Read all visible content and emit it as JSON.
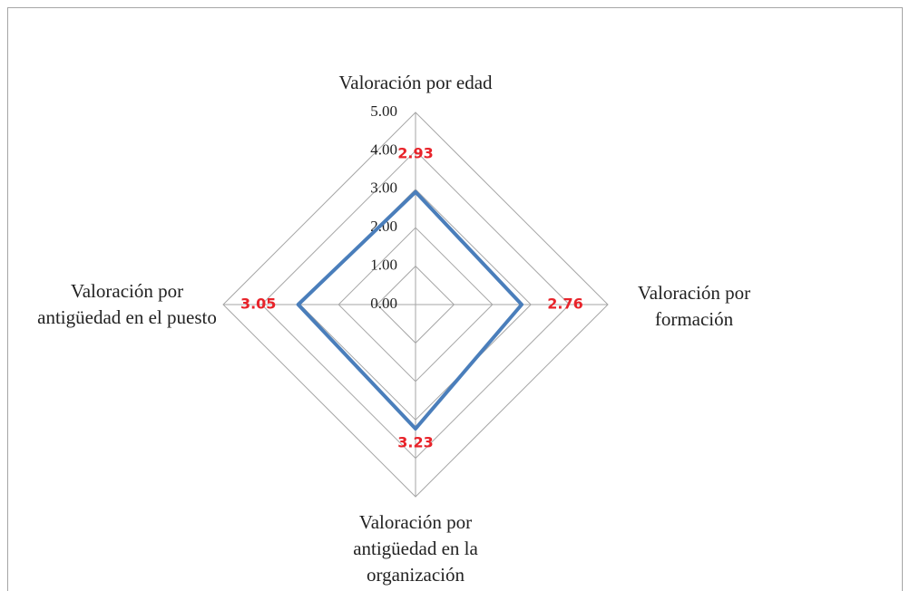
{
  "chart_data": {
    "type": "radar",
    "categories": [
      "Valoración por edad",
      "Valoración por formación",
      "Valoración por antigüedad en la organización",
      "Valoración por antigüedad en el puesto"
    ],
    "values": [
      2.93,
      2.76,
      3.23,
      3.05
    ],
    "color": "#4a7ebb",
    "label_color": "#e8232a",
    "ylim": [
      0,
      5
    ],
    "yticks": [
      {
        "value": 0,
        "label": "0.00"
      },
      {
        "value": 1,
        "label": "1.00"
      },
      {
        "value": 2,
        "label": "2.00"
      },
      {
        "value": 3,
        "label": "3.00"
      },
      {
        "value": 4,
        "label": "4.00"
      },
      {
        "value": 5,
        "label": "5.00"
      }
    ],
    "grid": true
  }
}
